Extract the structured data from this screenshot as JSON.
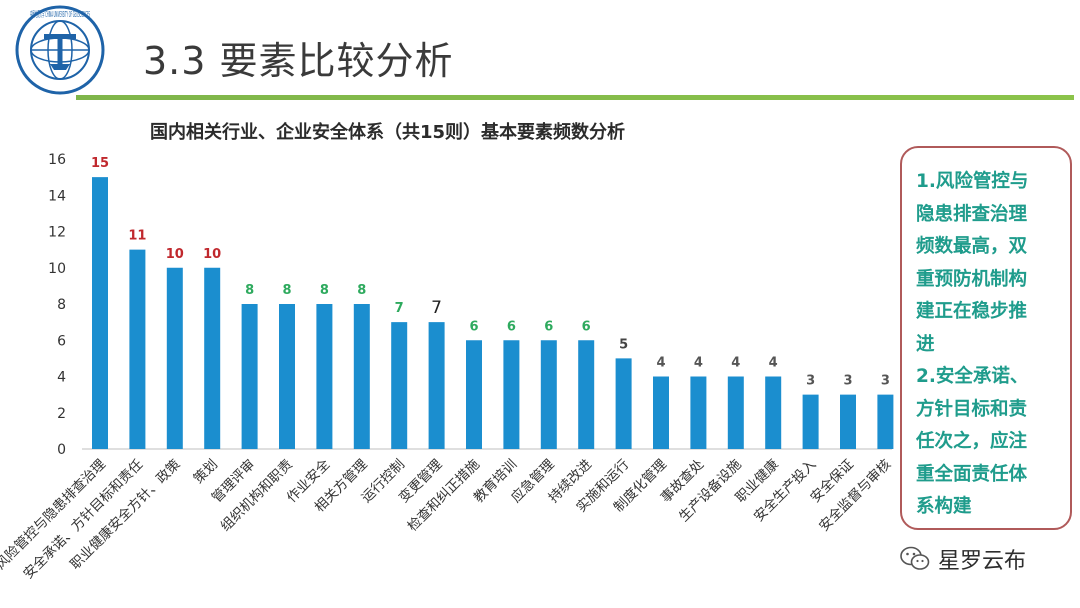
{
  "slide": {
    "title": "3.3 要素比较分析",
    "logo_text": "中国地质大学 CHINA UNIVERSITY OF GEOSCIENCES"
  },
  "chart_title": "国内相关行业、企业安全体系（共15则）基本要素频数分析",
  "chart_data": {
    "type": "bar",
    "title": "国内相关行业、企业安全体系（共15则）基本要素频数分析",
    "categories": [
      "风险管控与隐患排查治理",
      "安全承诺、方针目标和责任",
      "职业健康安全方针、政策",
      "策划",
      "管理评审",
      "组织机构和职责",
      "作业安全",
      "相关方管理",
      "运行控制",
      "变更管理",
      "检查和纠正措施",
      "教育培训",
      "应急管理",
      "持续改进",
      "实施和运行",
      "制度化管理",
      "事故查处",
      "生产设备设施",
      "职业健康",
      "安全生产投入",
      "安全保证",
      "安全监督与审核"
    ],
    "values": [
      15,
      11,
      10,
      10,
      8,
      8,
      8,
      8,
      7,
      7,
      6,
      6,
      6,
      6,
      5,
      4,
      4,
      4,
      4,
      3,
      3,
      3
    ],
    "label_colors": [
      "#c0282d",
      "#c0282d",
      "#c0282d",
      "#c0282d",
      "#2eaa5e",
      "#2eaa5e",
      "#2eaa5e",
      "#2eaa5e",
      "#2eaa5e",
      "#222222",
      "#2eaa5e",
      "#2eaa5e",
      "#2eaa5e",
      "#2eaa5e",
      "#444444",
      "#555555",
      "#555555",
      "#555555",
      "#555555",
      "#555555",
      "#555555",
      "#555555"
    ],
    "bar_color": "#1b8ecf",
    "ylim": [
      0,
      16
    ],
    "yticks": [
      0,
      2,
      4,
      6,
      8,
      10,
      12,
      14,
      16
    ],
    "grid": false,
    "xlabel": "",
    "ylabel": ""
  },
  "note": {
    "lines": [
      "1.风险管控与",
      "隐患排查治理",
      "频数最高，双",
      "重预防机制构",
      "建正在稳步推",
      "进",
      "2.安全承诺、",
      "方针目标和责",
      "任次之，应注",
      "重全面责任体",
      "系构建"
    ],
    "text_color": "#1f9c8c",
    "border_color": "#b05a5a"
  },
  "watermark": {
    "text": "星罗云布",
    "icon": "wechat-icon"
  }
}
